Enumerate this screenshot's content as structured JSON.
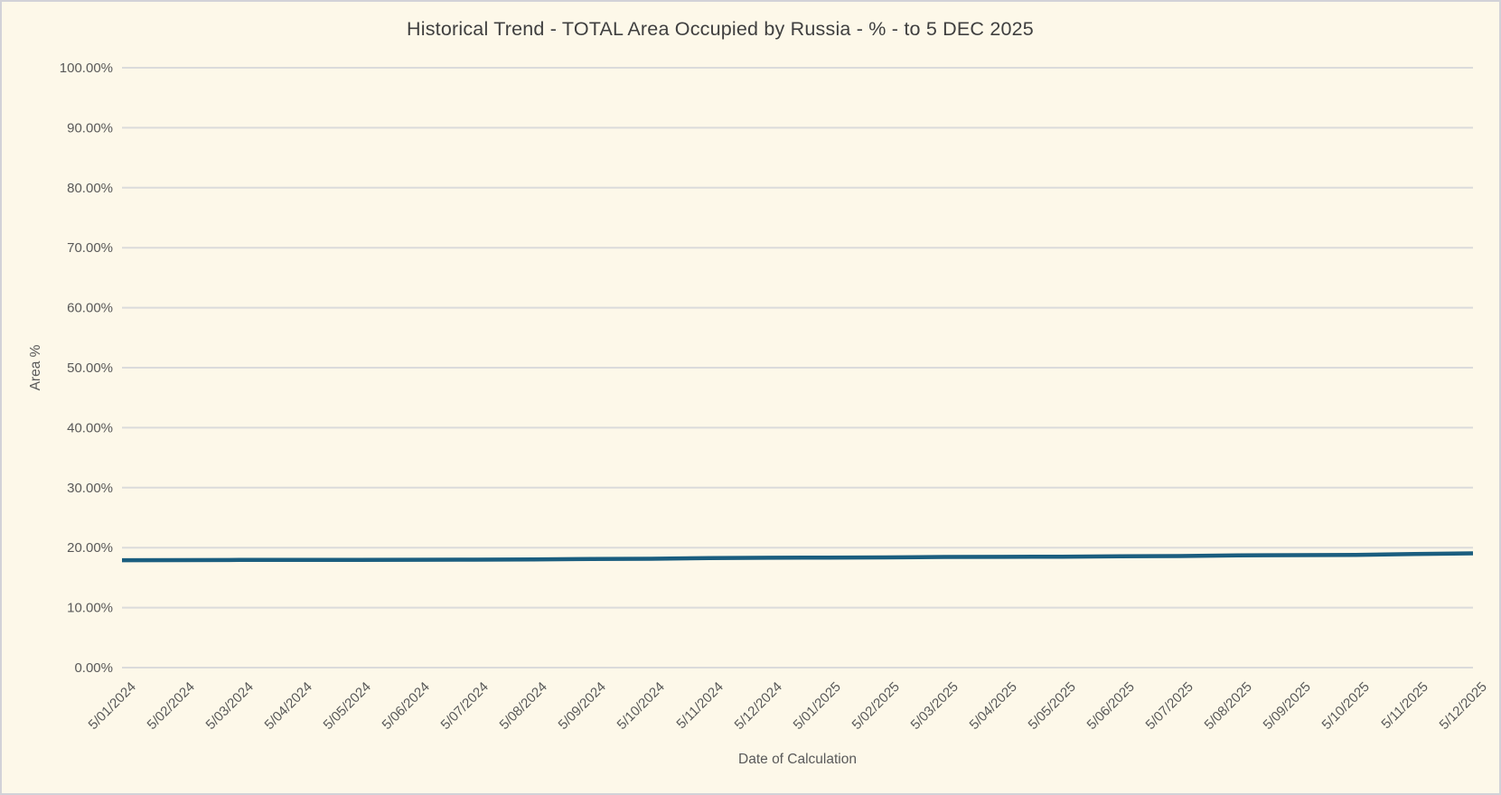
{
  "page": {
    "background_color": "#FDF8E9",
    "border_color": "#D2D2D8"
  },
  "chart_data": {
    "type": "line",
    "title": "Historical Trend - TOTAL Area Occupied by Russia - % - to 5 DEC 2025",
    "xlabel": "Date of Calculation",
    "ylabel": "Area %",
    "ylim": [
      0,
      100
    ],
    "grid": true,
    "legend": "none",
    "line_color": "#1B5E7F",
    "gridline_color": "#DBDBDB",
    "tick_label_color": "#595959",
    "y_ticks": [
      "0.00%",
      "10.00%",
      "20.00%",
      "30.00%",
      "40.00%",
      "50.00%",
      "60.00%",
      "70.00%",
      "80.00%",
      "90.00%",
      "100.00%"
    ],
    "categories": [
      "5/01/2024",
      "5/02/2024",
      "5/03/2024",
      "5/04/2024",
      "5/05/2024",
      "5/06/2024",
      "5/07/2024",
      "5/08/2024",
      "5/09/2024",
      "5/10/2024",
      "5/11/2024",
      "5/12/2024",
      "5/01/2025",
      "5/02/2025",
      "5/03/2025",
      "5/04/2025",
      "5/05/2025",
      "5/06/2025",
      "5/07/2025",
      "5/08/2025",
      "5/09/2025",
      "5/10/2025",
      "5/11/2025",
      "5/12/2025"
    ],
    "values": [
      17.9,
      17.92,
      17.95,
      17.96,
      17.97,
      17.98,
      18.0,
      18.02,
      18.12,
      18.15,
      18.25,
      18.32,
      18.35,
      18.38,
      18.45,
      18.47,
      18.5,
      18.55,
      18.6,
      18.72,
      18.75,
      18.8,
      18.95,
      19.05
    ]
  }
}
